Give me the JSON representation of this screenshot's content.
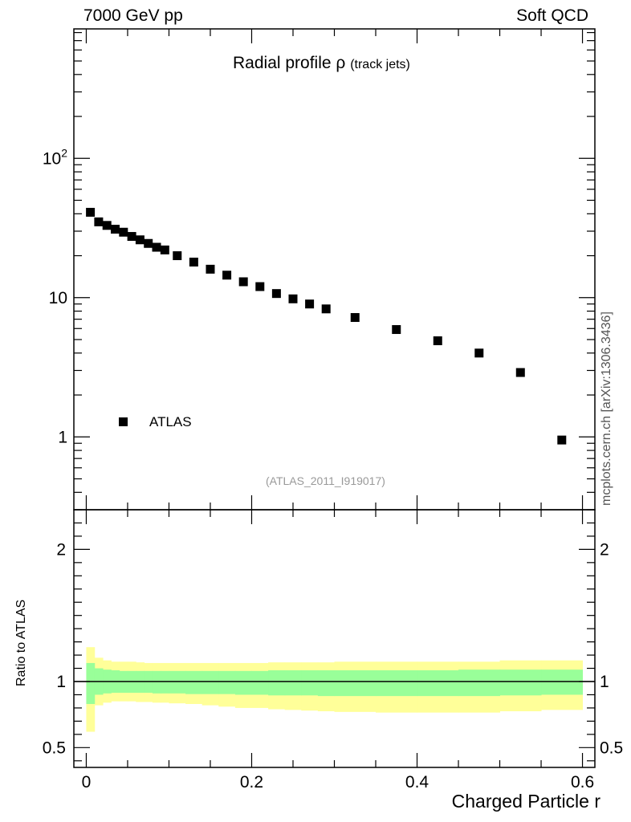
{
  "header": {
    "left": "7000 GeV pp",
    "right": "Soft QCD"
  },
  "title": {
    "main": "Radial profile ρ",
    "sub": "(track jets)"
  },
  "side_text": "mcplots.cern.ch [arXiv:1306.3436]",
  "reference": "(ATLAS_2011_I919017)",
  "legend": {
    "label": "ATLAS"
  },
  "colors": {
    "band_inner": "#99ff99",
    "band_outer": "#ffff99",
    "marker": "#000000"
  },
  "chart_data": [
    {
      "type": "scatter",
      "panel": "main",
      "yscale": "log",
      "xlim": [
        -0.015,
        0.615
      ],
      "ylim": [
        0.3,
        850
      ],
      "y_ticks": [
        {
          "value": 1,
          "label": "1"
        },
        {
          "value": 10,
          "label": "10"
        },
        {
          "value": 100,
          "label": "10",
          "sup": "2"
        }
      ],
      "series": [
        {
          "name": "ATLAS",
          "x": [
            0.005,
            0.015,
            0.025,
            0.035,
            0.045,
            0.055,
            0.065,
            0.075,
            0.085,
            0.095,
            0.11,
            0.13,
            0.15,
            0.17,
            0.19,
            0.21,
            0.23,
            0.25,
            0.27,
            0.29,
            0.325,
            0.375,
            0.425,
            0.475,
            0.525,
            0.575
          ],
          "y": [
            41,
            35,
            33,
            31,
            29.5,
            27.5,
            26,
            24.5,
            23,
            22,
            20,
            18,
            16,
            14.5,
            13,
            12,
            10.7,
            9.8,
            9,
            8.3,
            7.2,
            5.9,
            4.9,
            4.0,
            2.9,
            0.95
          ]
        }
      ]
    },
    {
      "type": "area",
      "panel": "ratio",
      "xlim": [
        -0.015,
        0.615
      ],
      "ylim": [
        0.35,
        2.3
      ],
      "xlabel": "Charged Particle r",
      "ylabel": "Ratio to ATLAS",
      "x_ticks": [
        {
          "value": 0,
          "label": "0"
        },
        {
          "value": 0.2,
          "label": "0.2"
        },
        {
          "value": 0.4,
          "label": "0.4"
        },
        {
          "value": 0.6,
          "label": "0.6"
        }
      ],
      "y_ticks": [
        {
          "value": 0.5,
          "label": "0.5"
        },
        {
          "value": 1,
          "label": "1"
        },
        {
          "value": 2,
          "label": "2"
        }
      ],
      "bin_edges": [
        0.0,
        0.01,
        0.02,
        0.03,
        0.04,
        0.05,
        0.06,
        0.07,
        0.08,
        0.09,
        0.1,
        0.12,
        0.14,
        0.16,
        0.18,
        0.2,
        0.22,
        0.24,
        0.26,
        0.28,
        0.3,
        0.35,
        0.4,
        0.45,
        0.5,
        0.55,
        0.6
      ],
      "inner_band": {
        "lo": [
          0.83,
          0.9,
          0.91,
          0.915,
          0.915,
          0.915,
          0.915,
          0.915,
          0.91,
          0.91,
          0.91,
          0.905,
          0.905,
          0.905,
          0.9,
          0.9,
          0.895,
          0.895,
          0.895,
          0.89,
          0.89,
          0.89,
          0.89,
          0.89,
          0.895,
          0.9
        ],
        "hi": [
          1.14,
          1.1,
          1.09,
          1.085,
          1.08,
          1.08,
          1.08,
          1.08,
          1.08,
          1.08,
          1.08,
          1.08,
          1.08,
          1.08,
          1.08,
          1.08,
          1.085,
          1.085,
          1.085,
          1.085,
          1.085,
          1.085,
          1.085,
          1.09,
          1.09,
          1.09
        ]
      },
      "outer_band": {
        "lo": [
          0.62,
          0.82,
          0.84,
          0.85,
          0.85,
          0.85,
          0.845,
          0.845,
          0.84,
          0.84,
          0.835,
          0.83,
          0.82,
          0.81,
          0.8,
          0.8,
          0.79,
          0.785,
          0.78,
          0.775,
          0.77,
          0.765,
          0.765,
          0.765,
          0.775,
          0.785
        ],
        "hi": [
          1.26,
          1.18,
          1.16,
          1.15,
          1.15,
          1.15,
          1.145,
          1.14,
          1.14,
          1.14,
          1.14,
          1.14,
          1.14,
          1.14,
          1.14,
          1.14,
          1.145,
          1.145,
          1.145,
          1.145,
          1.15,
          1.15,
          1.15,
          1.15,
          1.16,
          1.16
        ]
      },
      "reference_line": 1
    }
  ]
}
